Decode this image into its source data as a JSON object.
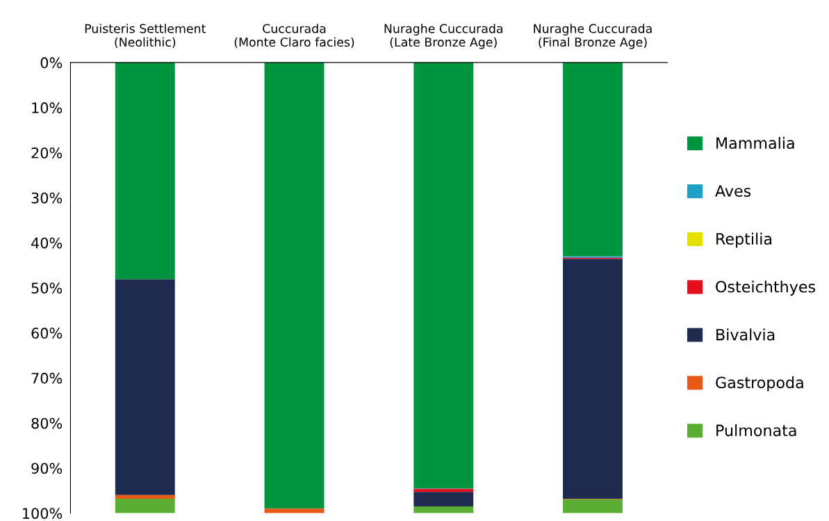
{
  "chart_data": {
    "type": "bar",
    "stacked": true,
    "categories": [
      "Puisteris Settlement\n(Neolithic)",
      "Cuccurada\n(Monte Claro facies)",
      "Nuraghe Cuccurada\n(Late Bronze Age)",
      "Nuraghe Cuccurada\n(Final Bronze Age)"
    ],
    "series": [
      {
        "name": "Mammalia",
        "color": "#009640",
        "values": [
          48.1,
          99.0,
          94.5,
          43.0
        ]
      },
      {
        "name": "Aves",
        "color": "#1ba0c8",
        "values": [
          0,
          0,
          0.1,
          0.3
        ]
      },
      {
        "name": "Reptilia",
        "color": "#e6e000",
        "values": [
          0,
          0,
          0,
          0
        ]
      },
      {
        "name": "Osteichthyes",
        "color": "#e30f1b",
        "values": [
          0,
          0,
          0.7,
          0.3
        ]
      },
      {
        "name": "Bivalvia",
        "color": "#1e2a4f",
        "values": [
          47.9,
          0,
          3.2,
          53.2
        ]
      },
      {
        "name": "Gastropoda",
        "color": "#e85815",
        "values": [
          0.8,
          1.0,
          0,
          0.1
        ]
      },
      {
        "name": "Pulmonata",
        "color": "#5aaf32",
        "values": [
          3.2,
          0,
          1.5,
          3.1
        ]
      }
    ],
    "ylim": [
      100,
      0
    ],
    "yticks": [
      {
        "value": 0,
        "label": "0%"
      },
      {
        "value": 10,
        "label": "10%"
      },
      {
        "value": 20,
        "label": "20%"
      },
      {
        "value": 30,
        "label": "30%"
      },
      {
        "value": 40,
        "label": "40%"
      },
      {
        "value": 50,
        "label": "50%"
      },
      {
        "value": 60,
        "label": "60%"
      },
      {
        "value": 70,
        "label": "70%"
      },
      {
        "value": 80,
        "label": "80%"
      },
      {
        "value": 90,
        "label": "90%"
      },
      {
        "value": 100,
        "label": "100%"
      }
    ],
    "grid": false,
    "legend": "right"
  }
}
